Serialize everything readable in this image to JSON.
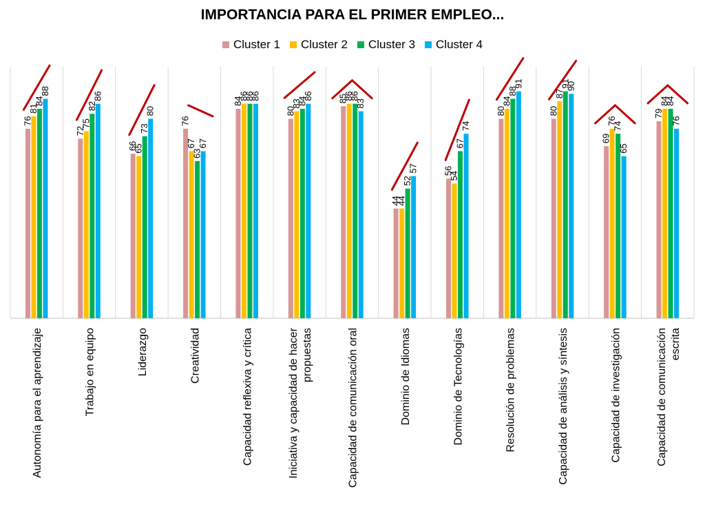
{
  "chart_data": {
    "type": "bar",
    "title": "IMPORTANCIA PARA EL PRIMER EMPLEO...",
    "xlabel": "",
    "ylabel": "",
    "ylim": [
      0,
      100
    ],
    "legend_position": "top",
    "grid": false,
    "categories": [
      "Autonomía para el aprendizaje",
      "Trabajo en equipo",
      "Liderazgo",
      "Creatividad",
      "Capacidad reflexiva y crítica",
      "Iniciativa y capacidad de hacer propuestas",
      "Capacidad de comunicación oral",
      "Dominio de Idiomas",
      "Dominio de Tecnologías",
      "Resolución de problemas",
      "Capacidad de análisis y síntesis",
      "Capacidad de investigación",
      "Capacidad de comunicación escrita"
    ],
    "series": [
      {
        "name": "Cluster 1",
        "color": "#d99694",
        "values": [
          76,
          72,
          66,
          76,
          84,
          80,
          85,
          44,
          56,
          80,
          80,
          69,
          79
        ]
      },
      {
        "name": "Cluster 2",
        "color": "#ffc000",
        "values": [
          81,
          75,
          65,
          67,
          86,
          83,
          86,
          44,
          54,
          84,
          87,
          76,
          84
        ]
      },
      {
        "name": "Cluster 3",
        "color": "#00b050",
        "values": [
          84,
          82,
          73,
          63,
          86,
          84,
          86,
          52,
          67,
          88,
          91,
          74,
          84
        ]
      },
      {
        "name": "Cluster 4",
        "color": "#00b0f0",
        "values": [
          88,
          86,
          80,
          67,
          86,
          86,
          83,
          57,
          74,
          91,
          90,
          65,
          76
        ]
      }
    ],
    "trend_marks": [
      {
        "category": "Autonomía para el aprendizaje",
        "shape": "rising"
      },
      {
        "category": "Trabajo en equipo",
        "shape": "rising"
      },
      {
        "category": "Liderazgo",
        "shape": "rising"
      },
      {
        "category": "Creatividad",
        "shape": "falling"
      },
      {
        "category": "Iniciativa y capacidad de hacer propuestas",
        "shape": "rising"
      },
      {
        "category": "Capacidad de comunicación oral",
        "shape": "peak"
      },
      {
        "category": "Dominio de Idiomas",
        "shape": "rising"
      },
      {
        "category": "Dominio de Tecnologías",
        "shape": "rising"
      },
      {
        "category": "Resolución de problemas",
        "shape": "rising"
      },
      {
        "category": "Capacidad de análisis y síntesis",
        "shape": "rising"
      },
      {
        "category": "Capacidad de investigación",
        "shape": "peak"
      },
      {
        "category": "Capacidad de comunicación escrita",
        "shape": "peak"
      }
    ],
    "trend_color": "#c00000",
    "separator_color": "#d9d9d9",
    "axis_color": "#bfbfbf"
  }
}
